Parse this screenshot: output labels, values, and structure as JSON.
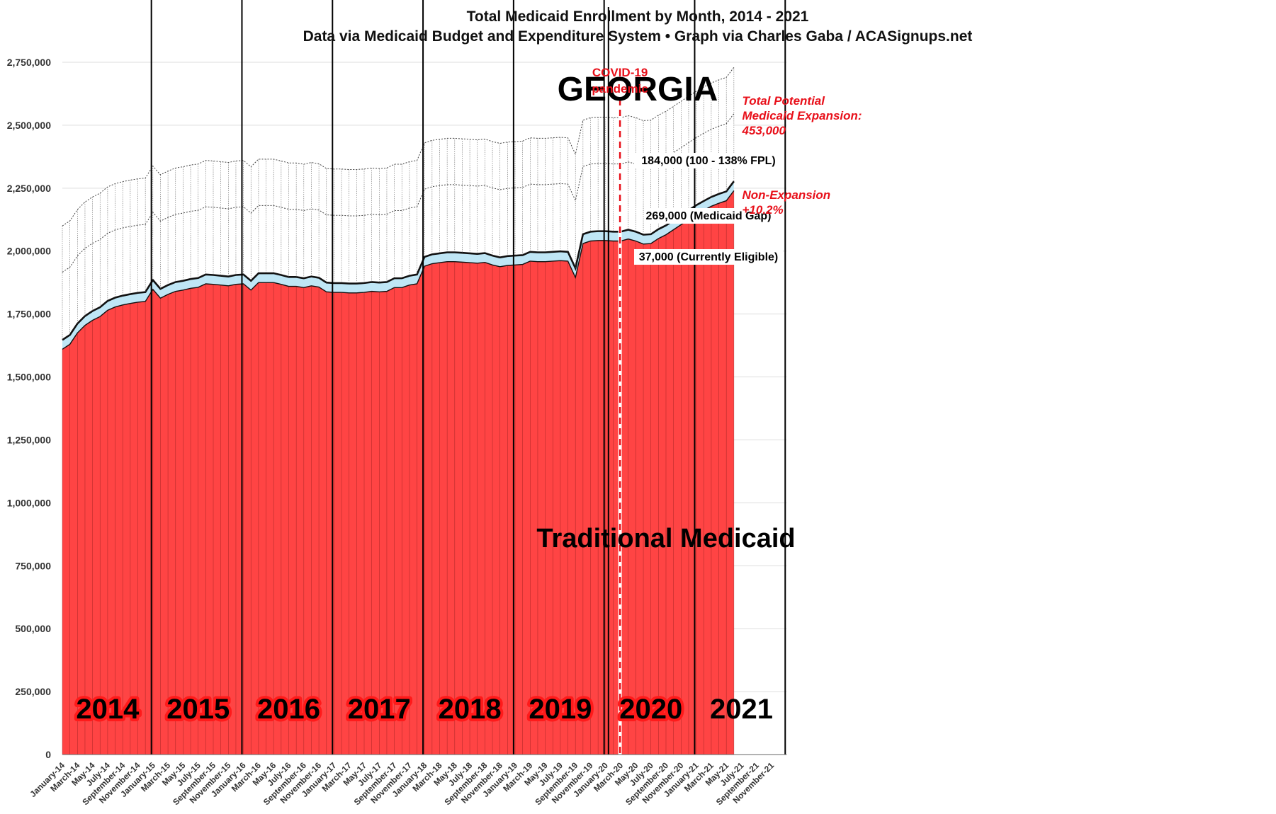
{
  "chart_data": {
    "type": "area",
    "title": "Total Medicaid Enrollment by Month, 2014 - 2021",
    "subtitle": "Data via Medicaid Budget and Expenditure System  •  Graph via Charles Gaba / ACASignups.net",
    "state_label": "GEORGIA",
    "xlabel": "",
    "ylabel": "",
    "ylim": [
      0,
      2750000
    ],
    "y_ticks": [
      0,
      250000,
      500000,
      750000,
      1000000,
      1250000,
      1500000,
      1750000,
      2000000,
      2250000,
      2500000,
      2750000
    ],
    "y_tick_labels": [
      "0",
      "250,000",
      "500,000",
      "750,000",
      "1,000,000",
      "1,250,000",
      "1,500,000",
      "1,750,000",
      "2,000,000",
      "2,250,000",
      "2,500,000",
      "2,750,000"
    ],
    "grid": true,
    "x_tick_labels": [
      "January-14",
      "March-14",
      "May-14",
      "July-14",
      "September-14",
      "November-14",
      "January-15",
      "March-15",
      "May-15",
      "July-15",
      "September-15",
      "November-15",
      "January-16",
      "March-16",
      "May-16",
      "July-16",
      "September-16",
      "November-16",
      "January-17",
      "March-17",
      "May-17",
      "July-17",
      "September-17",
      "November-17",
      "January-18",
      "March-18",
      "May-18",
      "July-18",
      "September-18",
      "November-18",
      "January-19",
      "March-19",
      "May-19",
      "July-19",
      "September-19",
      "November-19",
      "January-20",
      "March-20",
      "May-20",
      "July-20",
      "September-20",
      "November-20",
      "January-21",
      "March-21",
      "May-21",
      "July-21",
      "September-21",
      "November-21"
    ],
    "year_labels": [
      "2014",
      "2015",
      "2016",
      "2017",
      "2018",
      "2019",
      "2020",
      "2021"
    ],
    "series": [
      {
        "name": "Traditional Medicaid",
        "color": "#ff4444",
        "values": [
          1610000,
          1630000,
          1675000,
          1705000,
          1725000,
          1740000,
          1765000,
          1778000,
          1786000,
          1792000,
          1797000,
          1800000,
          1848000,
          1813000,
          1828000,
          1840000,
          1845000,
          1852000,
          1856000,
          1870000,
          1868000,
          1865000,
          1862000,
          1868000,
          1870000,
          1845000,
          1875000,
          1875000,
          1875000,
          1868000,
          1860000,
          1860000,
          1855000,
          1862000,
          1857000,
          1838000,
          1836000,
          1836000,
          1834000,
          1834000,
          1836000,
          1840000,
          1838000,
          1840000,
          1855000,
          1855000,
          1865000,
          1870000,
          1940000,
          1950000,
          1954000,
          1958000,
          1958000,
          1956000,
          1954000,
          1952000,
          1955000,
          1945000,
          1938000,
          1943000,
          1945000,
          1947000,
          1960000,
          1958000,
          1958000,
          1960000,
          1962000,
          1960000,
          1895000,
          2030000,
          2040000,
          2042000,
          2042000,
          2040000,
          2040000,
          2048000,
          2040000,
          2028000,
          2030000,
          2050000,
          2065000,
          2085000,
          2105000,
          2125000,
          2145000,
          2162000,
          2178000,
          2190000,
          2200000,
          2240000
        ]
      },
      {
        "name": "37,000 (Currently Eligible)",
        "color": "#bfe6f5",
        "values": [
          37000,
          37000,
          37000,
          37000,
          37000,
          37000,
          37000,
          37000,
          37000,
          37000,
          37000,
          37000,
          37000,
          37000,
          37000,
          37000,
          37000,
          37000,
          37000,
          37000,
          37000,
          37000,
          37000,
          37000,
          37000,
          37000,
          37000,
          37000,
          37000,
          37000,
          37000,
          37000,
          37000,
          37000,
          37000,
          37000,
          37000,
          37000,
          37000,
          37000,
          37000,
          37000,
          37000,
          37000,
          37000,
          37000,
          37000,
          37000,
          37000,
          37000,
          37000,
          37000,
          37000,
          37000,
          37000,
          37000,
          37000,
          37000,
          37000,
          37000,
          37000,
          37000,
          37000,
          37000,
          37000,
          37000,
          37000,
          37000,
          37000,
          37000,
          37000,
          37000,
          37000,
          37000,
          37000,
          37000,
          37000,
          37000,
          37000,
          37000,
          37000,
          37000,
          37000,
          37000,
          37000,
          37000,
          37000,
          37000,
          37000,
          37000
        ]
      },
      {
        "name": "269,000 (Medicaid Gap)",
        "color": "#ffffff",
        "values": [
          269000,
          269000,
          269000,
          269000,
          269000,
          269000,
          269000,
          269000,
          269000,
          269000,
          269000,
          269000,
          269000,
          269000,
          269000,
          269000,
          269000,
          269000,
          269000,
          269000,
          269000,
          269000,
          269000,
          269000,
          269000,
          269000,
          269000,
          269000,
          269000,
          269000,
          269000,
          269000,
          269000,
          269000,
          269000,
          269000,
          269000,
          269000,
          269000,
          269000,
          269000,
          269000,
          269000,
          269000,
          269000,
          269000,
          269000,
          269000,
          269000,
          269000,
          269000,
          269000,
          269000,
          269000,
          269000,
          269000,
          269000,
          269000,
          269000,
          269000,
          269000,
          269000,
          269000,
          269000,
          269000,
          269000,
          269000,
          269000,
          269000,
          269000,
          269000,
          269000,
          269000,
          269000,
          269000,
          269000,
          269000,
          269000,
          269000,
          269000,
          269000,
          269000,
          269000,
          269000,
          269000,
          269000,
          269000,
          269000,
          269000,
          269000
        ]
      },
      {
        "name": "184,000 (100 - 138% FPL)",
        "color": "#ffffff",
        "values": [
          184000,
          184000,
          184000,
          184000,
          184000,
          184000,
          184000,
          184000,
          184000,
          184000,
          184000,
          184000,
          184000,
          184000,
          184000,
          184000,
          184000,
          184000,
          184000,
          184000,
          184000,
          184000,
          184000,
          184000,
          184000,
          184000,
          184000,
          184000,
          184000,
          184000,
          184000,
          184000,
          184000,
          184000,
          184000,
          184000,
          184000,
          184000,
          184000,
          184000,
          184000,
          184000,
          184000,
          184000,
          184000,
          184000,
          184000,
          184000,
          184000,
          184000,
          184000,
          184000,
          184000,
          184000,
          184000,
          184000,
          184000,
          184000,
          184000,
          184000,
          184000,
          184000,
          184000,
          184000,
          184000,
          184000,
          184000,
          184000,
          184000,
          184000,
          184000,
          184000,
          184000,
          184000,
          184000,
          184000,
          184000,
          184000,
          184000,
          184000,
          184000,
          184000,
          184000,
          184000,
          184000,
          184000,
          184000,
          184000,
          184000,
          184000
        ]
      }
    ],
    "annotations": {
      "covid": [
        "COVID-19",
        "pandemic"
      ],
      "covid_month": "March-20",
      "expansion": [
        "Total Potential",
        "Medicaid Expansion:",
        "453,000"
      ],
      "non_expansion": [
        "Non-Expansion",
        "+10.2%"
      ]
    },
    "colors": {
      "traditional": "#ff4444",
      "eligible": "#bfe6f5",
      "annotation": "#e8101a",
      "grid": "#dddddd"
    }
  }
}
